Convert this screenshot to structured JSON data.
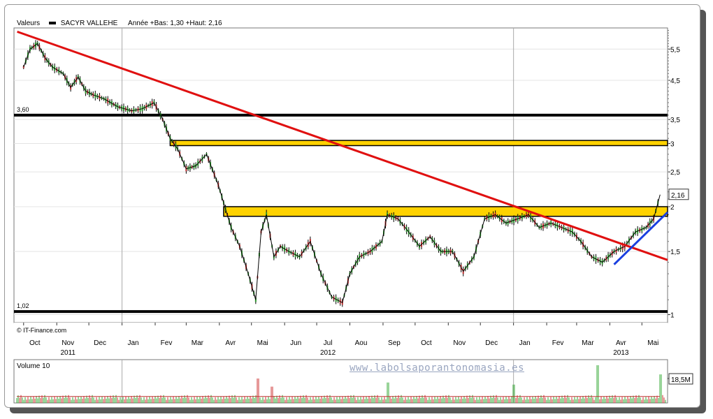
{
  "legend": {
    "label": "Valeurs",
    "series_name": "SACYR VALLEHE",
    "range_text": "Année +Bas: 1,30 +Haut: 2,16"
  },
  "credit": "© IT-Finance.com",
  "volume_label": "Volume 10",
  "watermark": "www.labolsaporantonomasia.es",
  "chart_data": {
    "type": "line",
    "scale": "log",
    "title": "",
    "ylim": [
      0.95,
      6.3
    ],
    "y_ticks": [
      "5,5",
      "4,5",
      "3,5",
      "3",
      "2,5",
      "2",
      "1,5",
      "1"
    ],
    "last_value_label": "2,16",
    "x_months": [
      "Oct",
      "Nov",
      "Dec",
      "Jan",
      "Fev",
      "Mar",
      "Avr",
      "Mai",
      "Jun",
      "Jul",
      "Aou",
      "Sep",
      "Oct",
      "Nov",
      "Dec",
      "Jan",
      "Fev",
      "Mar",
      "Avr",
      "Mai"
    ],
    "x_years": [
      "2011",
      "2012",
      "2013"
    ],
    "price_series": {
      "name": "SACYR VALLEHE",
      "dates": [
        "2011-10-01",
        "2011-10-07",
        "2011-10-14",
        "2011-10-21",
        "2011-10-28",
        "2011-11-07",
        "2011-11-14",
        "2011-11-21",
        "2011-11-28",
        "2011-12-05",
        "2011-12-15",
        "2011-12-28",
        "2012-01-10",
        "2012-01-20",
        "2012-01-31",
        "2012-02-08",
        "2012-02-15",
        "2012-02-22",
        "2012-03-01",
        "2012-03-10",
        "2012-03-20",
        "2012-03-31",
        "2012-04-05",
        "2012-04-12",
        "2012-04-20",
        "2012-04-28",
        "2012-05-05",
        "2012-05-10",
        "2012-05-15",
        "2012-05-22",
        "2012-05-28",
        "2012-06-05",
        "2012-06-15",
        "2012-06-25",
        "2012-07-05",
        "2012-07-15",
        "2012-07-25",
        "2012-08-01",
        "2012-08-10",
        "2012-08-20",
        "2012-08-31",
        "2012-09-05",
        "2012-09-15",
        "2012-09-25",
        "2012-10-05",
        "2012-10-15",
        "2012-10-25",
        "2012-11-05",
        "2012-11-15",
        "2012-11-25",
        "2012-12-05",
        "2012-12-15",
        "2012-12-25",
        "2013-01-05",
        "2013-01-15",
        "2013-01-25",
        "2013-02-05",
        "2013-02-15",
        "2013-02-25",
        "2013-03-05",
        "2013-03-15",
        "2013-03-25",
        "2013-04-05",
        "2013-04-15",
        "2013-04-25",
        "2013-05-05",
        "2013-05-12",
        "2013-05-18"
      ],
      "values": [
        4.9,
        5.5,
        5.7,
        5.2,
        4.9,
        4.7,
        4.3,
        4.6,
        4.2,
        4.1,
        4.0,
        3.8,
        3.7,
        3.75,
        3.9,
        3.5,
        3.1,
        2.9,
        2.55,
        2.6,
        2.8,
        2.3,
        2.05,
        1.75,
        1.55,
        1.3,
        1.1,
        1.7,
        1.9,
        1.45,
        1.55,
        1.5,
        1.45,
        1.6,
        1.3,
        1.12,
        1.08,
        1.3,
        1.45,
        1.5,
        1.6,
        1.9,
        1.85,
        1.7,
        1.55,
        1.65,
        1.5,
        1.5,
        1.32,
        1.45,
        1.85,
        1.9,
        1.8,
        1.85,
        1.9,
        1.75,
        1.8,
        1.75,
        1.7,
        1.6,
        1.45,
        1.4,
        1.5,
        1.55,
        1.7,
        1.75,
        1.85,
        2.16
      ]
    },
    "annotations": [
      {
        "type": "horizontal_line",
        "value": 3.6,
        "label": "3,60",
        "color": "#000000"
      },
      {
        "type": "horizontal_line",
        "value": 1.02,
        "label": "1,02",
        "color": "#000000"
      },
      {
        "type": "zone",
        "range": [
          2.96,
          3.06
        ],
        "color": "#ffd200",
        "from": "2012-02-15"
      },
      {
        "type": "zone",
        "range": [
          1.88,
          2.0
        ],
        "color": "#ffd200",
        "from": "2012-04-05"
      },
      {
        "type": "trendline",
        "color": "#e01010",
        "from": [
          "2011-09-25",
          6.15
        ],
        "to": [
          "2013-05-25",
          1.42
        ]
      },
      {
        "type": "trendline",
        "color": "#1a3fe0",
        "from": [
          "2013-04-05",
          1.38
        ],
        "to": [
          "2013-05-25",
          1.93
        ]
      }
    ],
    "volume": {
      "name": "Volume 10",
      "max_label": "18,5M",
      "color_up": "#33aa33",
      "color_down": "#cc3333",
      "spikes": [
        {
          "date": "2012-05-07",
          "value": 12
        },
        {
          "date": "2012-05-20",
          "value": 8
        },
        {
          "date": "2012-09-05",
          "value": 10
        },
        {
          "date": "2013-01-01",
          "value": 9
        },
        {
          "date": "2013-03-20",
          "value": 18.5
        },
        {
          "date": "2013-05-18",
          "value": 14
        }
      ],
      "baseline_level": 2.5
    }
  }
}
